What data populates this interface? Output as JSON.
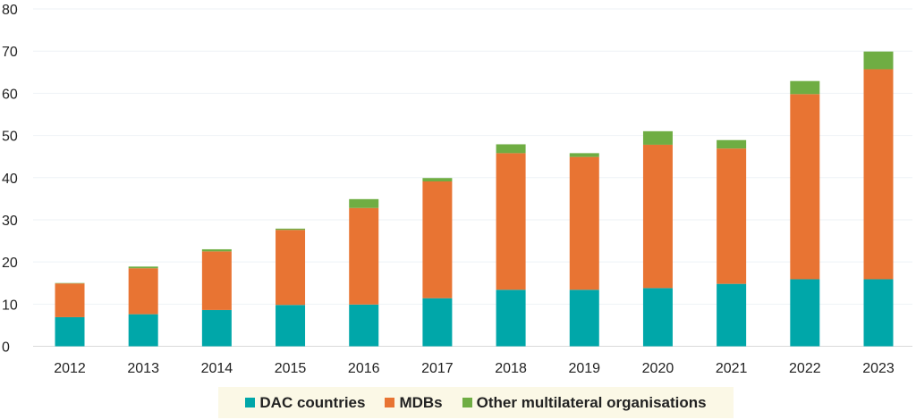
{
  "chart_data": {
    "type": "bar",
    "stacked": true,
    "title": "",
    "xlabel": "",
    "ylabel": "",
    "ylim": [
      0,
      80
    ],
    "yticks": [
      0,
      10,
      20,
      30,
      40,
      50,
      60,
      70,
      80
    ],
    "grid": true,
    "legend_position": "bottom",
    "categories": [
      "2012",
      "2013",
      "2014",
      "2015",
      "2016",
      "2017",
      "2018",
      "2019",
      "2020",
      "2021",
      "2022",
      "2023"
    ],
    "series": [
      {
        "name": "DAC countries",
        "color": "#00a7a9",
        "values": [
          6.9,
          7.6,
          8.6,
          9.8,
          9.9,
          11.4,
          13.4,
          13.4,
          13.8,
          14.8,
          15.9,
          15.9
        ]
      },
      {
        "name": "MDBs",
        "color": "#e87433",
        "values": [
          8.0,
          10.9,
          13.9,
          17.8,
          22.9,
          27.7,
          32.4,
          31.5,
          34.0,
          32.1,
          43.9,
          49.8
        ]
      },
      {
        "name": "Other multilateral organisations",
        "color": "#6fad43",
        "values": [
          0.1,
          0.4,
          0.5,
          0.3,
          2.1,
          0.8,
          2.1,
          0.9,
          3.2,
          2.0,
          3.1,
          4.2
        ]
      }
    ]
  }
}
